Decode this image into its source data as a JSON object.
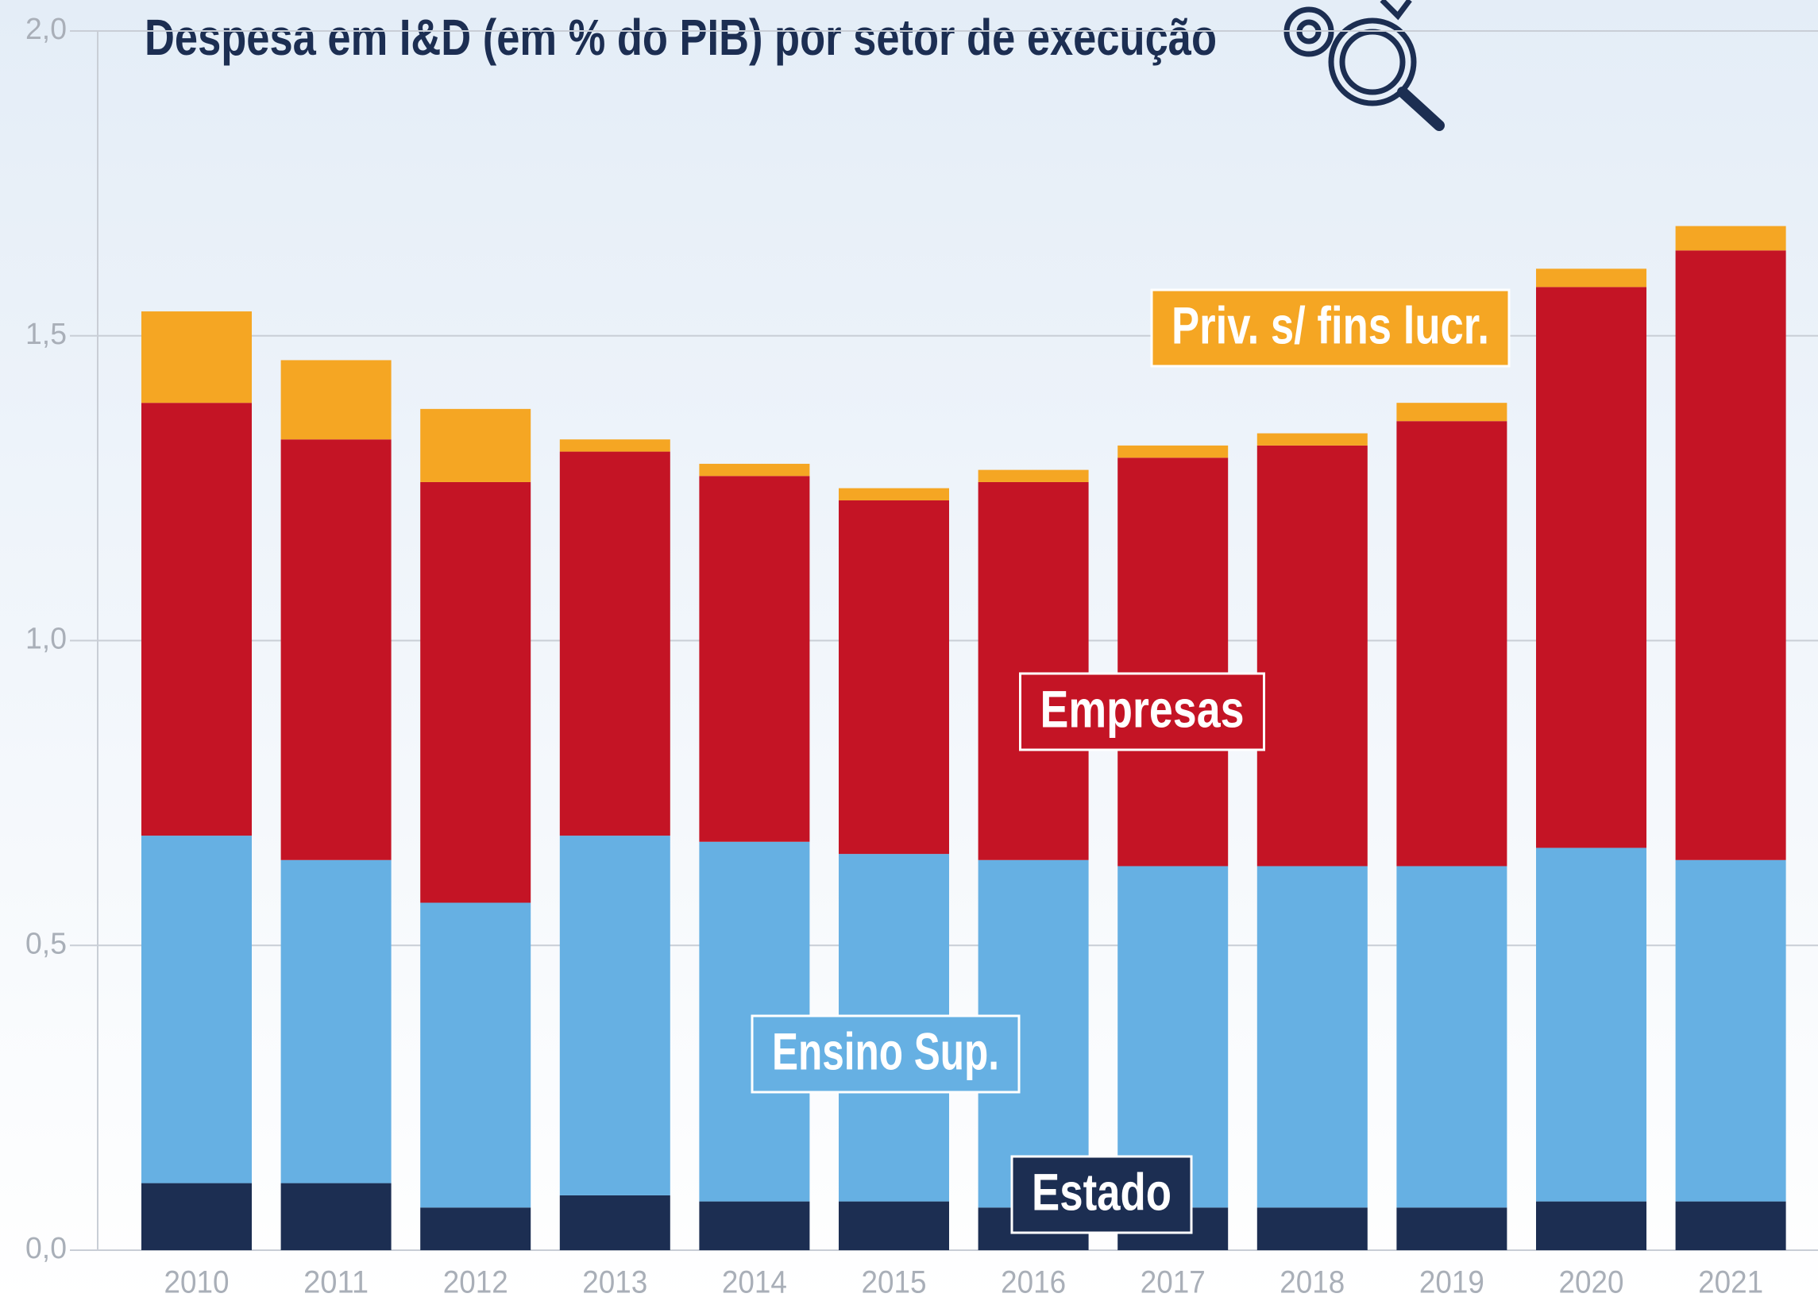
{
  "chart_data": {
    "type": "stacked_bar",
    "title": "Despesa em I&D (em % do PIB) por setor de execução",
    "categories": [
      "2010",
      "2011",
      "2012",
      "2013",
      "2014",
      "2015",
      "2016",
      "2017",
      "2018",
      "2019",
      "2020",
      "2021"
    ],
    "series": [
      {
        "name": "Estado",
        "color": "#1c2e52",
        "values": [
          0.11,
          0.11,
          0.07,
          0.09,
          0.08,
          0.08,
          0.07,
          0.07,
          0.07,
          0.07,
          0.08,
          0.08
        ]
      },
      {
        "name": "Ensino Sup.",
        "color": "#66b0e3",
        "values": [
          0.57,
          0.53,
          0.5,
          0.59,
          0.59,
          0.57,
          0.57,
          0.56,
          0.56,
          0.56,
          0.58,
          0.56
        ]
      },
      {
        "name": "Empresas",
        "color": "#c41425",
        "values": [
          0.71,
          0.69,
          0.69,
          0.63,
          0.6,
          0.58,
          0.62,
          0.67,
          0.69,
          0.73,
          0.92,
          1.0
        ]
      },
      {
        "name": "Priv. s/ fins lucr.",
        "color": "#f5a623",
        "values": [
          0.15,
          0.13,
          0.12,
          0.02,
          0.02,
          0.02,
          0.02,
          0.02,
          0.02,
          0.03,
          0.03,
          0.04
        ]
      }
    ],
    "ylim": [
      0,
      2
    ],
    "yticks": [
      {
        "value": 0,
        "label": "0,0"
      },
      {
        "value": 0.5,
        "label": "0,5"
      },
      {
        "value": 1,
        "label": "1,0"
      },
      {
        "value": 1.5,
        "label": "1,5"
      },
      {
        "value": 2,
        "label": "2,0"
      }
    ],
    "grid": true
  }
}
